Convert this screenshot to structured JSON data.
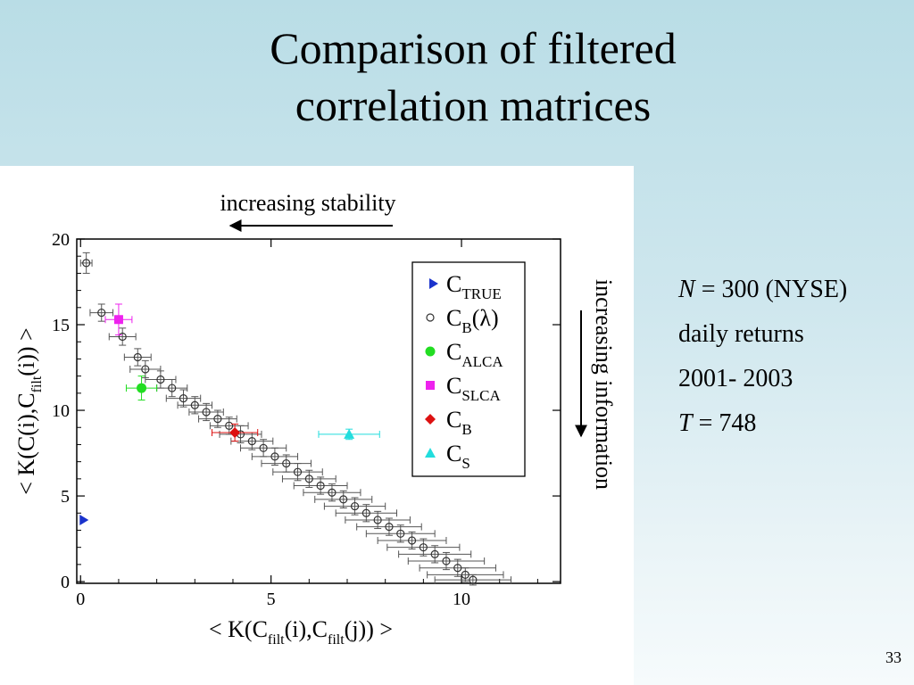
{
  "slide": {
    "title_line1": "Comparison of filtered",
    "title_line2": "correlation matrices",
    "slide_number": "33"
  },
  "info": {
    "line1_var": "N",
    "line1_rest": " = 300 (NYSE)",
    "line2": "daily returns",
    "line3": "2001- 2003",
    "line4_var": "T",
    "line4_rest": " = 748"
  },
  "colors": {
    "C_TRUE": "#1a33cc",
    "C_B_lambda": "#333333",
    "C_ALCA": "#22dd22",
    "C_SLCA": "#ee22ee",
    "C_B": "#dd1111",
    "C_S": "#22dddd"
  },
  "chart_data": {
    "type": "scatter",
    "annotations": {
      "top_arrow": "increasing stability",
      "right_arrow": "increasing information"
    },
    "xlabel_parts": [
      "< K(C",
      "filt",
      "(i),C",
      "filt",
      "(j)) >"
    ],
    "ylabel_parts": [
      "< K(C(i),C",
      "filt",
      "(i)) >"
    ],
    "xlim": [
      -0.1,
      12.6
    ],
    "ylim": [
      -0.1,
      20
    ],
    "x_ticks": [
      {
        "label": "0",
        "value": 0
      },
      {
        "label": "5",
        "value": 5
      },
      {
        "label": "10",
        "value": 10
      }
    ],
    "y_ticks": [
      {
        "label": "0",
        "value": 0
      },
      {
        "label": "5",
        "value": 5
      },
      {
        "label": "10",
        "value": 10
      },
      {
        "label": "15",
        "value": 15
      },
      {
        "label": "20",
        "value": 20
      }
    ],
    "legend": [
      {
        "key": "C_TRUE",
        "main": "C",
        "sub": "TRUE",
        "marker": "triangle-right"
      },
      {
        "key": "C_B_lambda",
        "main": "C",
        "sub": "B",
        "suffix": "(λ)",
        "marker": "open-circle"
      },
      {
        "key": "C_ALCA",
        "main": "C",
        "sub": "ALCA",
        "marker": "circle"
      },
      {
        "key": "C_SLCA",
        "main": "C",
        "sub": "SLCA",
        "marker": "square"
      },
      {
        "key": "C_B",
        "main": "C",
        "sub": "B",
        "marker": "diamond"
      },
      {
        "key": "C_S",
        "main": "C",
        "sub": "S",
        "marker": "triangle-up"
      }
    ],
    "legend_position": "top-right",
    "series": [
      {
        "key": "C_TRUE",
        "marker": "triangle-right",
        "points": [
          {
            "x": 0,
            "y": 3.6,
            "xerr": 0,
            "yerr": 0
          }
        ]
      },
      {
        "key": "C_SLCA",
        "marker": "square",
        "points": [
          {
            "x": 1.0,
            "y": 15.3,
            "xerr": 0.35,
            "yerr": 0.9
          }
        ]
      },
      {
        "key": "C_ALCA",
        "marker": "circle",
        "points": [
          {
            "x": 1.6,
            "y": 11.3,
            "xerr": 0.4,
            "yerr": 0.7
          }
        ]
      },
      {
        "key": "C_B",
        "marker": "diamond",
        "points": [
          {
            "x": 4.05,
            "y": 8.7,
            "xerr": 0.6,
            "yerr": 0.5
          }
        ]
      },
      {
        "key": "C_S",
        "marker": "triangle-up",
        "points": [
          {
            "x": 7.05,
            "y": 8.6,
            "xerr": 0.8,
            "yerr": 0.3
          }
        ]
      },
      {
        "key": "C_B_lambda",
        "marker": "open-circle",
        "points": [
          {
            "x": 0.15,
            "y": 18.6,
            "xerr": 0.15,
            "yerr": 0.6
          },
          {
            "x": 0.55,
            "y": 15.7,
            "xerr": 0.3,
            "yerr": 0.5
          },
          {
            "x": 1.1,
            "y": 14.3,
            "xerr": 0.35,
            "yerr": 0.5
          },
          {
            "x": 1.5,
            "y": 13.1,
            "xerr": 0.35,
            "yerr": 0.5
          },
          {
            "x": 1.7,
            "y": 12.4,
            "xerr": 0.4,
            "yerr": 0.5
          },
          {
            "x": 2.1,
            "y": 11.8,
            "xerr": 0.4,
            "yerr": 0.5
          },
          {
            "x": 2.4,
            "y": 11.3,
            "xerr": 0.4,
            "yerr": 0.5
          },
          {
            "x": 2.7,
            "y": 10.7,
            "xerr": 0.45,
            "yerr": 0.5
          },
          {
            "x": 3.0,
            "y": 10.3,
            "xerr": 0.45,
            "yerr": 0.5
          },
          {
            "x": 3.3,
            "y": 9.9,
            "xerr": 0.45,
            "yerr": 0.5
          },
          {
            "x": 3.6,
            "y": 9.5,
            "xerr": 0.5,
            "yerr": 0.5
          },
          {
            "x": 3.9,
            "y": 9.1,
            "xerr": 0.5,
            "yerr": 0.5
          },
          {
            "x": 4.2,
            "y": 8.6,
            "xerr": 0.55,
            "yerr": 0.5
          },
          {
            "x": 4.5,
            "y": 8.2,
            "xerr": 0.55,
            "yerr": 0.5
          },
          {
            "x": 4.8,
            "y": 7.8,
            "xerr": 0.6,
            "yerr": 0.5
          },
          {
            "x": 5.1,
            "y": 7.3,
            "xerr": 0.6,
            "yerr": 0.5
          },
          {
            "x": 5.4,
            "y": 6.9,
            "xerr": 0.65,
            "yerr": 0.5
          },
          {
            "x": 5.7,
            "y": 6.4,
            "xerr": 0.65,
            "yerr": 0.5
          },
          {
            "x": 6.0,
            "y": 6.0,
            "xerr": 0.7,
            "yerr": 0.5
          },
          {
            "x": 6.3,
            "y": 5.6,
            "xerr": 0.7,
            "yerr": 0.5
          },
          {
            "x": 6.6,
            "y": 5.2,
            "xerr": 0.75,
            "yerr": 0.5
          },
          {
            "x": 6.9,
            "y": 4.8,
            "xerr": 0.75,
            "yerr": 0.5
          },
          {
            "x": 7.2,
            "y": 4.4,
            "xerr": 0.8,
            "yerr": 0.5
          },
          {
            "x": 7.5,
            "y": 4.0,
            "xerr": 0.8,
            "yerr": 0.5
          },
          {
            "x": 7.8,
            "y": 3.6,
            "xerr": 0.85,
            "yerr": 0.5
          },
          {
            "x": 8.1,
            "y": 3.2,
            "xerr": 0.85,
            "yerr": 0.5
          },
          {
            "x": 8.4,
            "y": 2.8,
            "xerr": 0.9,
            "yerr": 0.5
          },
          {
            "x": 8.7,
            "y": 2.4,
            "xerr": 0.9,
            "yerr": 0.5
          },
          {
            "x": 9.0,
            "y": 2.0,
            "xerr": 0.95,
            "yerr": 0.5
          },
          {
            "x": 9.3,
            "y": 1.6,
            "xerr": 0.95,
            "yerr": 0.5
          },
          {
            "x": 9.6,
            "y": 1.2,
            "xerr": 1.0,
            "yerr": 0.5
          },
          {
            "x": 9.9,
            "y": 0.8,
            "xerr": 1.0,
            "yerr": 0.5
          },
          {
            "x": 10.1,
            "y": 0.4,
            "xerr": 1.0,
            "yerr": 0.4
          },
          {
            "x": 10.3,
            "y": 0.1,
            "xerr": 1.0,
            "yerr": 0.3
          }
        ]
      }
    ]
  }
}
